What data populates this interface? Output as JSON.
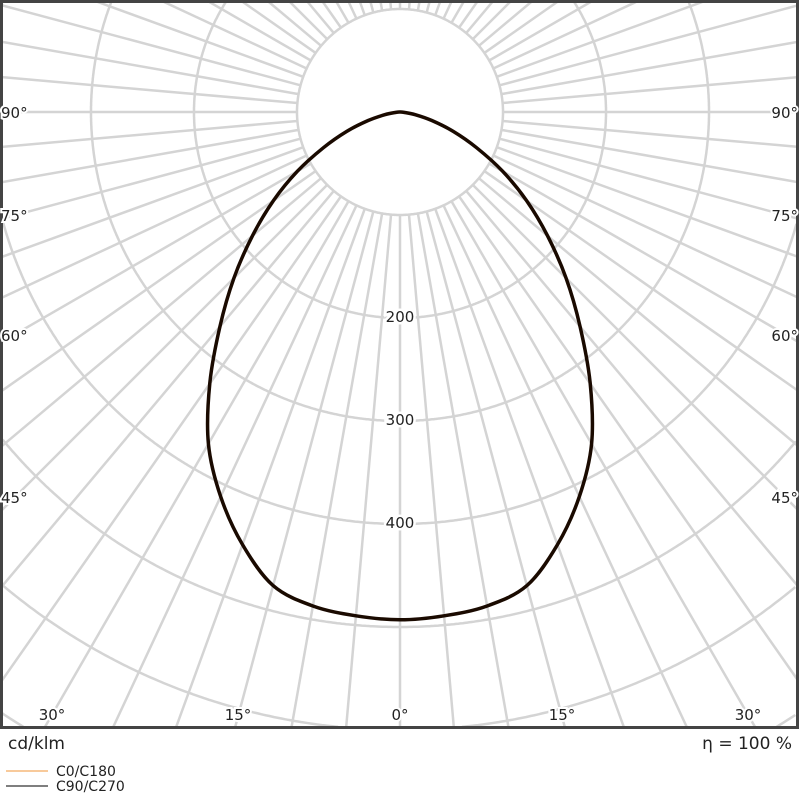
{
  "chart_data": {
    "type": "polar",
    "unit_label": "cd/klm",
    "efficiency_label": "η = 100 %",
    "radial_ticks": [
      100,
      200,
      300,
      400,
      500,
      600,
      700,
      800
    ],
    "radial_tick_labels": [
      "200",
      "300",
      "400"
    ],
    "angle_labels_side": [
      "90°",
      "75°",
      "60°",
      "45°"
    ],
    "angle_labels_bottom": [
      "30°",
      "15°",
      "0°",
      "15°",
      "30°"
    ],
    "grid": true,
    "angle_step_deg": 5,
    "legend_position": "bottom-left",
    "series": [
      {
        "name": "C0/C180",
        "color": "#f5b97a",
        "angles": [
          0,
          5,
          10,
          15,
          20,
          25,
          30,
          35,
          40,
          45,
          50,
          55,
          60,
          65,
          70,
          75,
          80,
          85,
          90
        ],
        "values": [
          493,
          491,
          487,
          476,
          447,
          412,
          372,
          322,
          272,
          228,
          187,
          150,
          115,
          82,
          55,
          32,
          15,
          4,
          0
        ]
      },
      {
        "name": "C90/C270",
        "color": "#1a0a00",
        "angles": [
          0,
          5,
          10,
          15,
          20,
          25,
          30,
          35,
          40,
          45,
          50,
          55,
          60,
          65,
          70,
          75,
          80,
          85,
          90
        ],
        "values": [
          493,
          491,
          487,
          476,
          447,
          412,
          372,
          322,
          272,
          228,
          187,
          150,
          115,
          82,
          55,
          32,
          15,
          4,
          0
        ]
      }
    ]
  }
}
